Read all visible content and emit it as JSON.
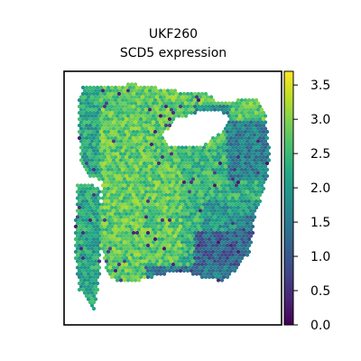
{
  "chart_data": {
    "type": "scatter",
    "title": "UKF260",
    "subtitle": "SCD5 expression",
    "xlabel": "",
    "ylabel": "",
    "colormap": "viridis",
    "colorbar": {
      "range": [
        0.0,
        3.7
      ],
      "ticks": [
        {
          "value": 0.0,
          "label": "0.0"
        },
        {
          "value": 0.5,
          "label": "0.5"
        },
        {
          "value": 1.0,
          "label": "1.0"
        },
        {
          "value": 1.5,
          "label": "1.5"
        },
        {
          "value": 2.0,
          "label": "2.0"
        },
        {
          "value": 2.5,
          "label": "2.5"
        },
        {
          "value": 3.0,
          "label": "3.0"
        },
        {
          "value": 3.5,
          "label": "3.5"
        }
      ]
    },
    "grid": false,
    "axes_ticks": false,
    "points": "hexagonal spatial spot grid; expression mostly 2.0-3.2, lower (0.5-1.5) in the right region and lower-right, tissue hole near upper right"
  }
}
